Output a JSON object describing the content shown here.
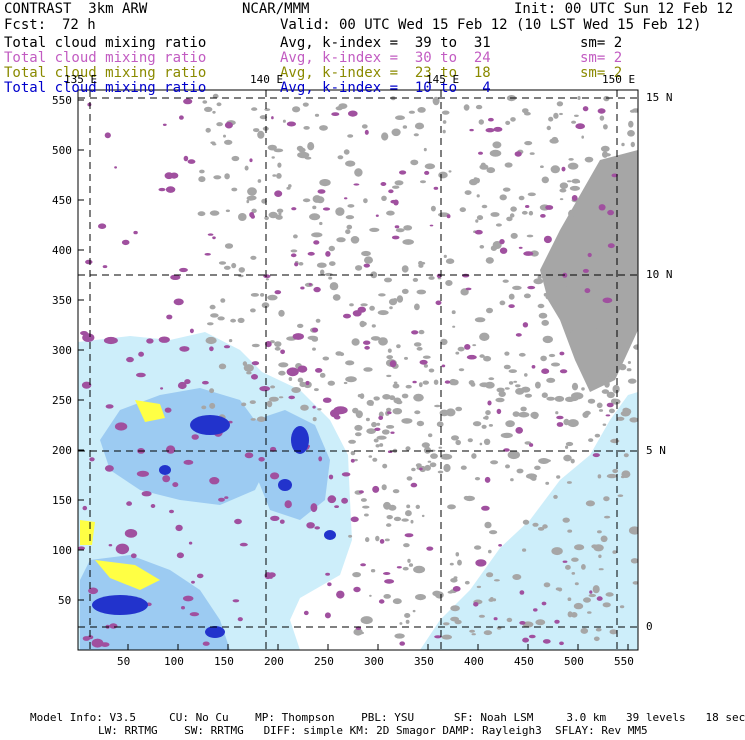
{
  "header": {
    "model": "CONTRAST  3km ARW",
    "org": "NCAR/MMM",
    "init": "Init: 00 UTC Sun 12 Feb 12",
    "fcst_label": "Fcst:",
    "fcst_value": "72 h",
    "valid": "Valid: 00 UTC Wed 15 Feb 12 (10 LST Wed 15 Feb 12)"
  },
  "legend": [
    {
      "name": "Total cloud mixing ratio",
      "range": "Avg, k-index =  39 to  31",
      "sm": "sm= 2",
      "color": "#000000"
    },
    {
      "name": "Total cloud mixing ratio",
      "range": "Avg, k-index =  30 to  24",
      "sm": "sm= 2",
      "color": "#c25cc2"
    },
    {
      "name": "Total cloud mixing ratio",
      "range": "Avg, k-index =  23 to  18",
      "sm": "sm= 2",
      "color": "#8a8a00"
    },
    {
      "name": "Total cloud mixing ratio",
      "range": "Avg, k-index =  10 to   4",
      "sm": "",
      "color": "#0000cc"
    }
  ],
  "map": {
    "lon_labels": [
      "135 E",
      "140 E",
      "145 E",
      "150 E"
    ],
    "lat_labels": [
      "15 N",
      "10 N",
      "5 N",
      "0"
    ],
    "x_ticks": [
      "50",
      "100",
      "150",
      "200",
      "250",
      "300",
      "350",
      "400",
      "450",
      "500",
      "550"
    ],
    "y_ticks": [
      "550",
      "500",
      "450",
      "400",
      "350",
      "300",
      "250",
      "200",
      "150",
      "100",
      "50"
    ],
    "colors": {
      "high_cloud": "#a6a6a6",
      "mid_cloud": "#a0509f",
      "low_cloud": "#ffff44",
      "shallow_cloud": "#cdeefa",
      "shallow_cloud_dense": "#9ccbf2",
      "core": "#2233cc"
    }
  },
  "footer": {
    "line1": "Model Info: V3.5     CU: No Cu    MP: Thompson    PBL: YSU      SF: Noah LSM     3.0 km   39 levels   18 sec",
    "line2": "LW: RRTMG    SW: RRTMG   DIFF: simple KM: 2D Smagor DAMP: Rayleigh3  SFLAY: Rev MM5"
  }
}
